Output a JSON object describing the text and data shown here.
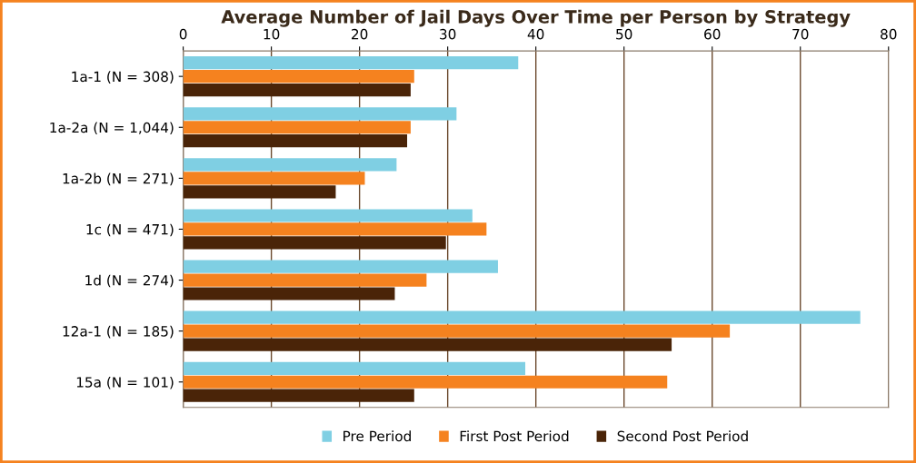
{
  "chart_data": {
    "type": "bar",
    "orientation": "horizontal",
    "title": "Average Number of Jail Days Over Time per Person by Strategy",
    "categories": [
      "1a-1 (N = 308)",
      "1a-2a (N = 1,044)",
      "1a-2b (N = 271)",
      "1c (N = 471)",
      "1d (N = 274)",
      "12a-1 (N = 185)",
      "15a (N = 101)"
    ],
    "series": [
      {
        "name": "Pre Period",
        "color": "#7fcfe3",
        "values": [
          38.0,
          31.0,
          24.2,
          32.8,
          35.7,
          76.8,
          38.8
        ]
      },
      {
        "name": "First Post Period",
        "color": "#f5821f",
        "values": [
          26.2,
          25.8,
          20.6,
          34.4,
          27.6,
          62.0,
          54.9
        ]
      },
      {
        "name": "Second Post Period",
        "color": "#4a2408",
        "values": [
          25.8,
          25.4,
          17.3,
          29.8,
          24.0,
          55.4,
          26.2
        ]
      }
    ],
    "xlim": [
      0,
      80
    ],
    "xticks": [
      0,
      10,
      20,
      30,
      40,
      50,
      60,
      70,
      80
    ],
    "grid": "x",
    "legend": "bottom"
  }
}
